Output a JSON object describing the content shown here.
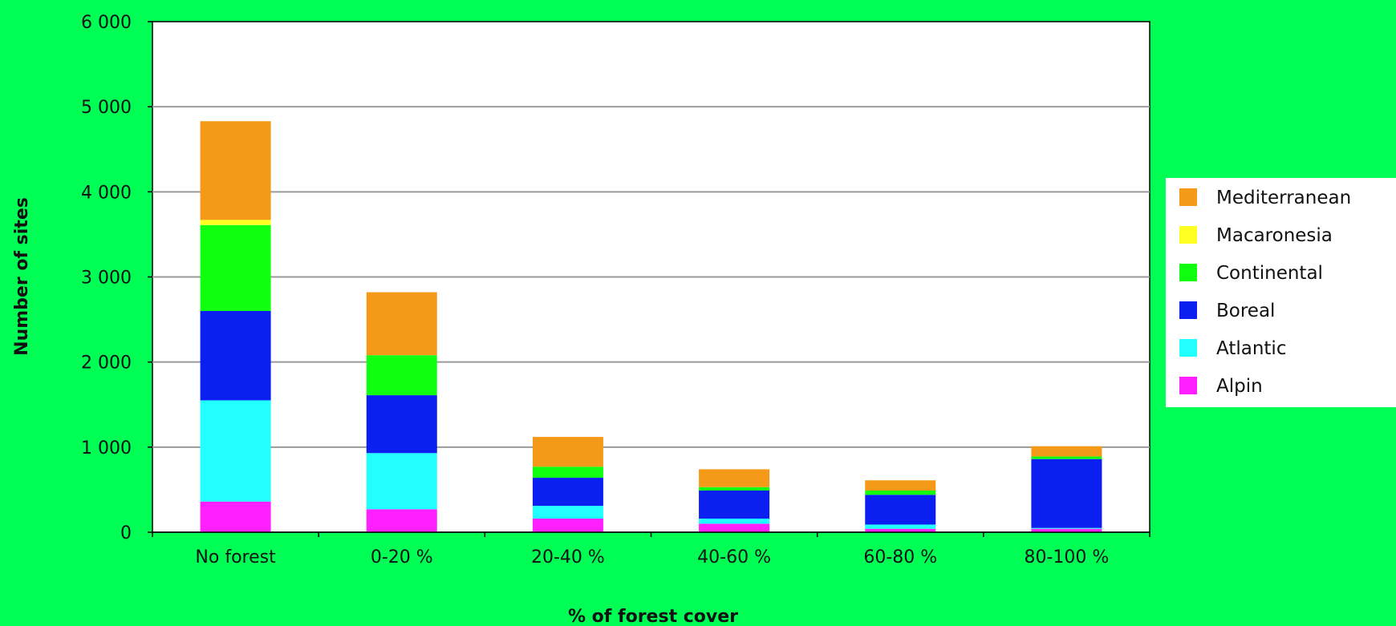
{
  "chart_data": {
    "type": "bar",
    "stacked": true,
    "title": "",
    "xlabel": "% of forest cover",
    "ylabel": "Number of sites",
    "ylim": [
      0,
      6000
    ],
    "yticks": [
      0,
      1000,
      2000,
      3000,
      4000,
      5000,
      6000
    ],
    "ytick_labels": [
      "0",
      "1 000",
      "2 000",
      "3 000",
      "4 000",
      "5 000",
      "6 000"
    ],
    "categories": [
      "No forest",
      "0-20 %",
      "20-40 %",
      "40-60 %",
      "60-80 %",
      "80-100 %"
    ],
    "grid": true,
    "legend_position": "right",
    "series": [
      {
        "name": "Alpin",
        "color": "#ff1fff",
        "values": [
          360,
          270,
          160,
          100,
          40,
          40
        ]
      },
      {
        "name": "Atlantic",
        "color": "#22ffff",
        "values": [
          1190,
          660,
          150,
          60,
          50,
          10
        ]
      },
      {
        "name": "Boreal",
        "color": "#0b1ff0",
        "values": [
          1050,
          680,
          330,
          330,
          350,
          810
        ]
      },
      {
        "name": "Continental",
        "color": "#11ff11",
        "values": [
          1010,
          470,
          130,
          40,
          50,
          30
        ]
      },
      {
        "name": "Macaronesia",
        "color": "#ffff22",
        "values": [
          60,
          0,
          0,
          0,
          0,
          0
        ]
      },
      {
        "name": "Mediterranean",
        "color": "#f59a18",
        "values": [
          1160,
          740,
          350,
          210,
          120,
          120
        ]
      }
    ]
  }
}
